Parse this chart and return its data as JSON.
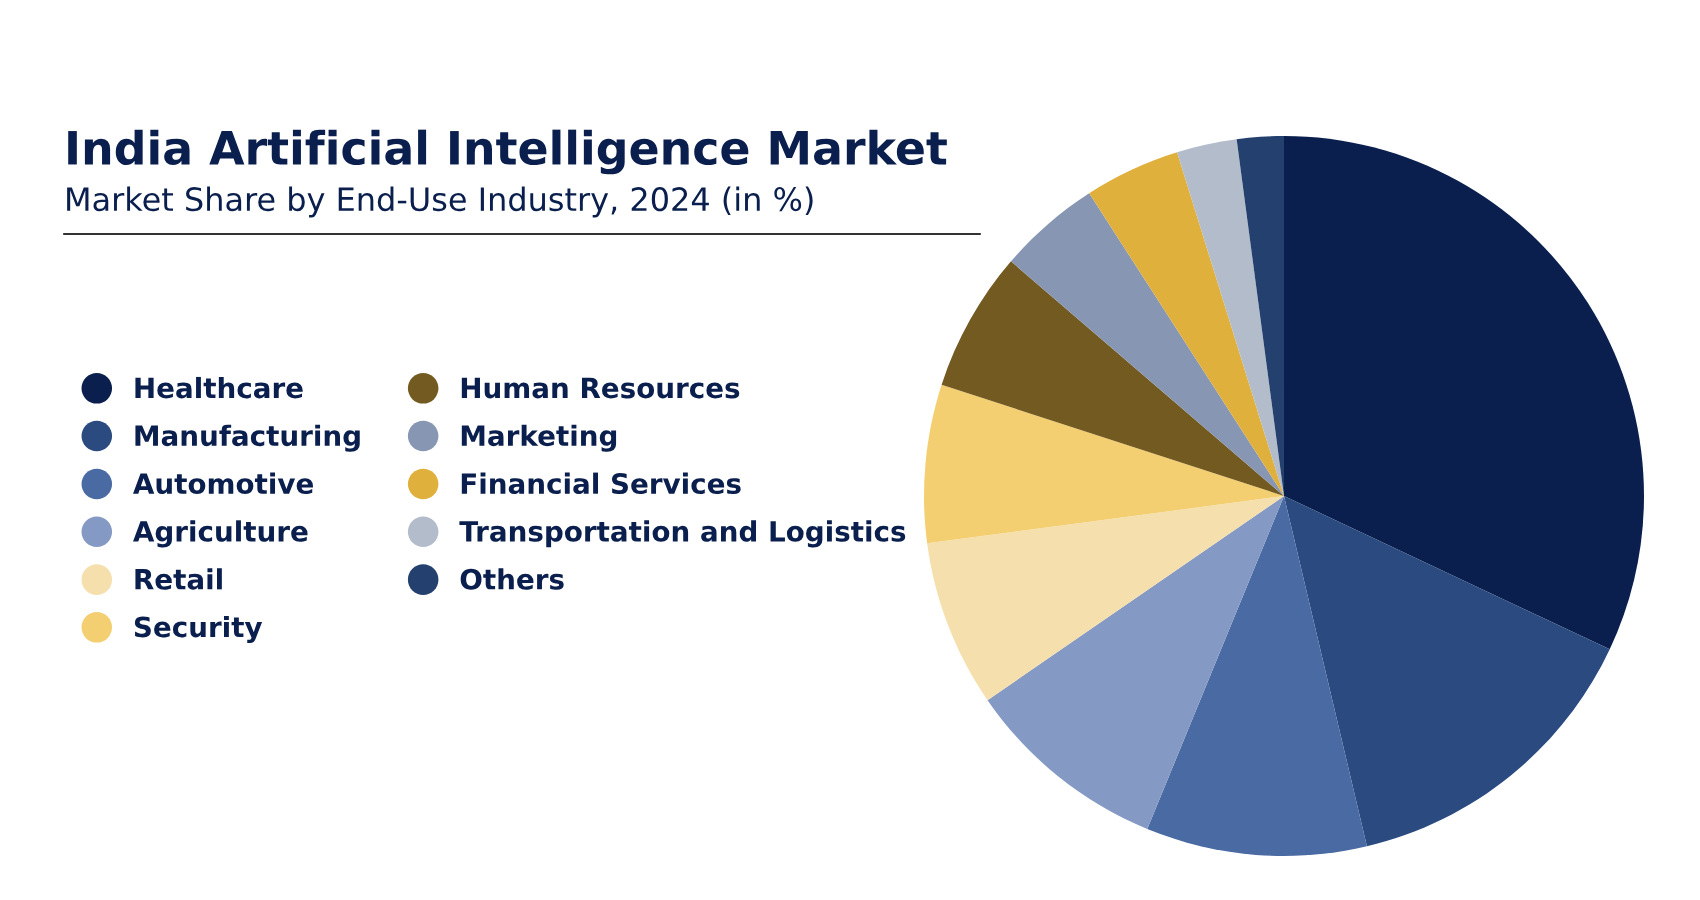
{
  "chart_data": {
    "type": "pie",
    "title": "India Artificial Intelligence Market",
    "subtitle": "Market Share by End-Use Industry, 2024 (in %)",
    "categories": [
      "Healthcare",
      "Manufacturing",
      "Automotive",
      "Agriculture",
      "Retail",
      "Security",
      "Human Resources",
      "Marketing",
      "Financial Services",
      "Transportation and Logistics",
      "Others"
    ],
    "values": [
      32.0,
      14.3,
      9.9,
      9.2,
      7.5,
      7.1,
      6.3,
      4.6,
      4.3,
      2.7,
      2.1
    ],
    "colors": [
      "#0a1f4d",
      "#2a4a80",
      "#4a6aa3",
      "#8499c4",
      "#f5e0ad",
      "#f3cf72",
      "#735a21",
      "#8796b3",
      "#e0b03d",
      "#b3bccb",
      "#24406e"
    ],
    "legend": "left"
  }
}
